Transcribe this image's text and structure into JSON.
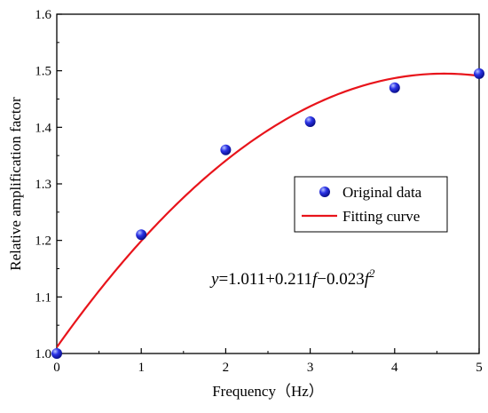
{
  "chart_data": {
    "type": "scatter",
    "xlabel": "Frequency（Hz）",
    "ylabel": "Relative amplification factor",
    "xlim": [
      0,
      5
    ],
    "ylim": [
      1.0,
      1.6
    ],
    "x_ticks": [
      "0",
      "1",
      "2",
      "3",
      "4",
      "5"
    ],
    "y_ticks": [
      "1.0",
      "1.1",
      "1.2",
      "1.3",
      "1.4",
      "1.5",
      "1.6"
    ],
    "grid": false,
    "legend_position": "center-right",
    "series": [
      {
        "name": "Original data",
        "kind": "scatter",
        "color": "#1f1fd6",
        "x": [
          0,
          1,
          2,
          3,
          4,
          5
        ],
        "y": [
          1.0,
          1.21,
          1.36,
          1.41,
          1.47,
          1.495
        ]
      },
      {
        "name": "Fitting curve",
        "kind": "line",
        "color": "#e8141b",
        "coefficients": [
          1.011,
          0.211,
          -0.023
        ]
      }
    ],
    "annotation": {
      "y_var": "y",
      "equals_text": "=1.011+0.211",
      "f1": "f",
      "minus_text": "−0.023",
      "f2": "f",
      "exponent": "2"
    }
  }
}
